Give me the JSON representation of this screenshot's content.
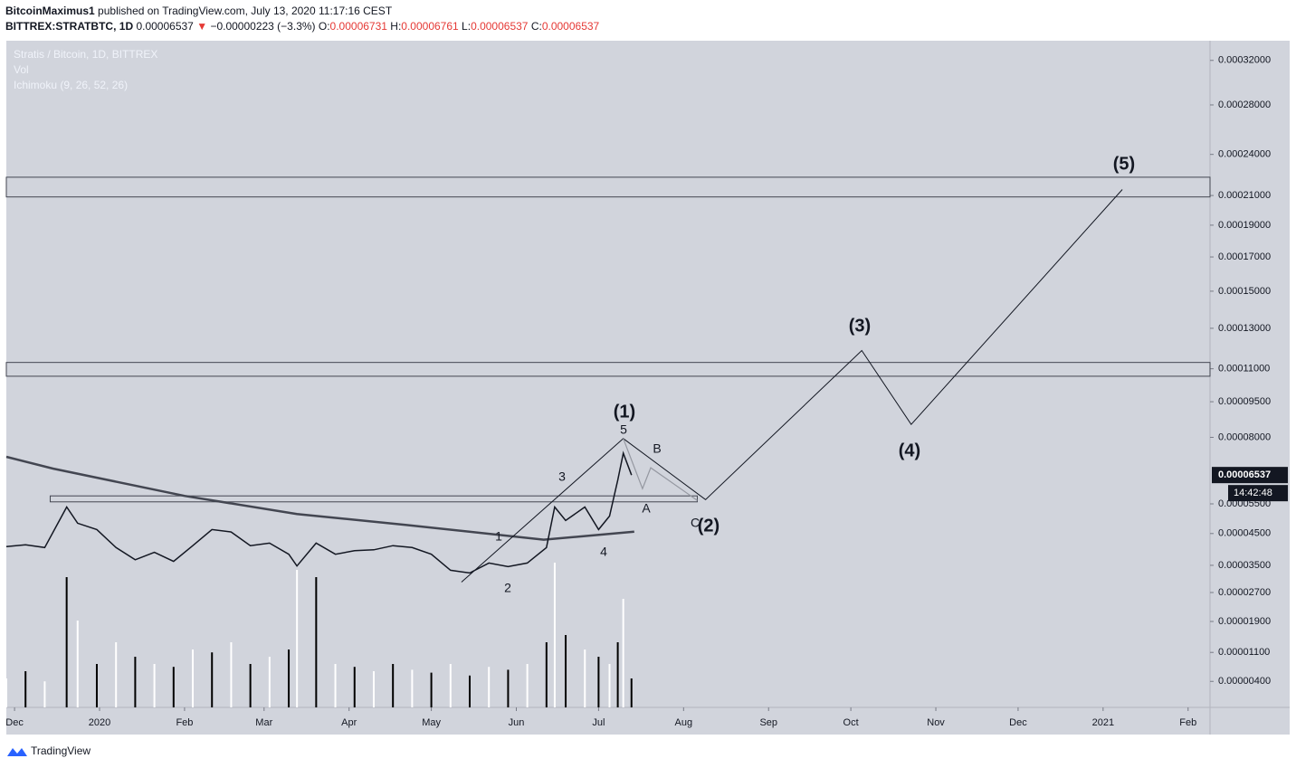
{
  "header": {
    "author": "BitcoinMaximus1",
    "published": "published on TradingView.com, July 13, 2020 11:17:16 CEST",
    "symbol": "BITTREX:STRATBTC, 1D",
    "price": "0.00006537",
    "arrow": "▼",
    "change": "−0.00000223 (−3.3%)",
    "open_label": "O:",
    "open": "0.00006731",
    "high_label": "H:",
    "high": "0.00006761",
    "low_label": "L:",
    "low": "0.00006537",
    "close_label": "C:",
    "close": "0.00006537"
  },
  "footer": {
    "brand": "TradingView"
  },
  "chart_data": {
    "type": "line",
    "legend": [
      "Stratis / Bitcoin, 1D, BITTREX",
      "Vol",
      "Ichimoku (9, 26, 52, 26)"
    ],
    "log_scale": true,
    "last_price_label": "0.00006537",
    "countdown": "14:42:48",
    "xlim": [
      "2019-11-28",
      "2021-02-09"
    ],
    "xticks": [
      {
        "value": "2019-12-01",
        "label": "Dec"
      },
      {
        "value": "2020-01-01",
        "label": "2020"
      },
      {
        "value": "2020-02-01",
        "label": "Feb"
      },
      {
        "value": "2020-03-01",
        "label": "Mar"
      },
      {
        "value": "2020-04-01",
        "label": "Apr"
      },
      {
        "value": "2020-05-01",
        "label": "May"
      },
      {
        "value": "2020-06-01",
        "label": "Jun"
      },
      {
        "value": "2020-07-01",
        "label": "Jul"
      },
      {
        "value": "2020-08-01",
        "label": "Aug"
      },
      {
        "value": "2020-09-01",
        "label": "Sep"
      },
      {
        "value": "2020-10-01",
        "label": "Oct"
      },
      {
        "value": "2020-11-01",
        "label": "Nov"
      },
      {
        "value": "2020-12-01",
        "label": "Dec"
      },
      {
        "value": "2021-01-01",
        "label": "2021"
      },
      {
        "value": "2021-02-01",
        "label": "Feb"
      }
    ],
    "ylim": [
      3e-06,
      0.000339
    ],
    "yticks": [
      {
        "value": 0.00032,
        "label": "0.00032000"
      },
      {
        "value": 0.00028,
        "label": "0.00028000"
      },
      {
        "value": 0.00024,
        "label": "0.00024000"
      },
      {
        "value": 0.00021,
        "label": "0.00021000"
      },
      {
        "value": 0.00019,
        "label": "0.00019000"
      },
      {
        "value": 0.00017,
        "label": "0.00017000"
      },
      {
        "value": 0.00015,
        "label": "0.00015000"
      },
      {
        "value": 0.00013,
        "label": "0.00013000"
      },
      {
        "value": 0.00011,
        "label": "0.00011000"
      },
      {
        "value": 9.5e-05,
        "label": "0.00009500"
      },
      {
        "value": 8e-05,
        "label": "0.00008000"
      },
      {
        "value": 5.5e-05,
        "label": "0.00005500"
      },
      {
        "value": 4.5e-05,
        "label": "0.00004500"
      },
      {
        "value": 3.5e-05,
        "label": "0.00003500"
      },
      {
        "value": 2.7e-05,
        "label": "0.00002700"
      },
      {
        "value": 1.9e-05,
        "label": "0.00001900"
      },
      {
        "value": 1.1e-05,
        "label": "0.00001100"
      },
      {
        "value": 4e-06,
        "label": "0.00000400"
      }
    ],
    "x": [
      "2019-11-28",
      "2019-12-05",
      "2019-12-12",
      "2019-12-20",
      "2019-12-24",
      "2019-12-31",
      "2020-01-07",
      "2020-01-14",
      "2020-01-21",
      "2020-01-28",
      "2020-02-04",
      "2020-02-11",
      "2020-02-18",
      "2020-02-25",
      "2020-03-03",
      "2020-03-10",
      "2020-03-13",
      "2020-03-20",
      "2020-03-27",
      "2020-04-03",
      "2020-04-10",
      "2020-04-17",
      "2020-04-24",
      "2020-05-01",
      "2020-05-08",
      "2020-05-15",
      "2020-05-22",
      "2020-05-29",
      "2020-06-05",
      "2020-06-12",
      "2020-06-15",
      "2020-06-19",
      "2020-06-26",
      "2020-07-01",
      "2020-07-05",
      "2020-07-08",
      "2020-07-10",
      "2020-07-13"
    ],
    "series": [
      {
        "color": "#131722",
        "values": [
          4.08e-05,
          4.14e-05,
          4.05e-05,
          5.39e-05,
          4.84e-05,
          4.63e-05,
          4.05e-05,
          3.67e-05,
          3.9e-05,
          3.62e-05,
          4.11e-05,
          4.63e-05,
          4.55e-05,
          4.11e-05,
          4.19e-05,
          3.84e-05,
          3.48e-05,
          4.19e-05,
          3.84e-05,
          3.95e-05,
          3.98e-05,
          4.11e-05,
          4.05e-05,
          3.84e-05,
          3.35e-05,
          3.27e-05,
          3.57e-05,
          3.46e-05,
          3.57e-05,
          4.05e-05,
          5.39e-05,
          4.93e-05,
          5.39e-05,
          4.63e-05,
          5.08e-05,
          6.35e-05,
          7.37e-05,
          6.537e-05
        ]
      },
      {
        "color": "#000000",
        "volume": [
          20,
          25,
          18,
          90,
          60,
          30,
          45,
          35,
          30,
          28,
          40,
          38,
          45,
          30,
          35,
          40,
          95,
          90,
          30,
          28,
          25,
          30,
          26,
          24,
          30,
          22,
          28,
          26,
          30,
          45,
          100,
          50,
          40,
          35,
          30,
          45,
          75,
          20
        ]
      }
    ],
    "overlay": {
      "color": "#434651",
      "x": [
        "2019-11-28",
        "2019-12-15",
        "2020-02-01",
        "2020-03-13",
        "2020-04-22",
        "2020-06-11",
        "2020-07-14"
      ],
      "values": [
        7.23e-05,
        6.78e-05,
        5.78e-05,
        5.15e-05,
        4.78e-05,
        4.3e-05,
        4.56e-05
      ]
    },
    "zones": [
      {
        "x": [
          "2019-11-28",
          "2021-02-09"
        ],
        "values": [
          0.000223,
          0.000209
        ]
      },
      {
        "x": [
          "2019-11-28",
          "2021-02-09"
        ],
        "values": [
          0.000113,
          0.0001065
        ]
      },
      {
        "x": [
          "2019-12-14",
          "2020-08-06"
        ],
        "values": [
          5.78e-05,
          5.57e-05
        ]
      }
    ],
    "projection": {
      "color": "#131722",
      "x": [
        "2020-05-12",
        "2020-07-10",
        "2020-08-09",
        "2020-10-05",
        "2020-10-23",
        "2021-01-08"
      ],
      "values": [
        3e-05,
        7.95e-05,
        5.65e-05,
        0.0001188,
        8.53e-05,
        0.0002142
      ]
    },
    "abc": {
      "color": "#9598a1",
      "x": [
        "2020-07-10",
        "2020-07-17",
        "2020-07-20",
        "2020-08-06"
      ],
      "values": [
        7.95e-05,
        6.04e-05,
        6.81e-05,
        5.62e-05
      ]
    },
    "wave_labels": [
      "(1)",
      "(2)",
      "(3)",
      "(4)",
      "(5)",
      "1",
      "2",
      "3",
      "4",
      "5",
      "A",
      "B",
      "C"
    ]
  }
}
